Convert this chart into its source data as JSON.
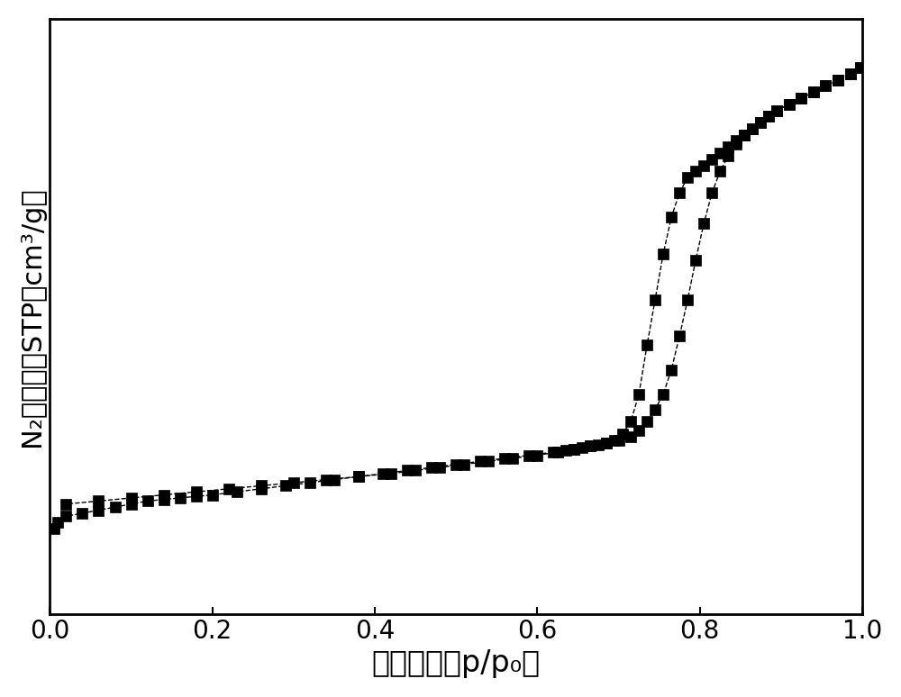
{
  "xlabel": "相对压力（p/p₀）",
  "ylabel": "N₂吸附量（STP，cm³/g）",
  "xlim": [
    0.0,
    1.0
  ],
  "xticks": [
    0.0,
    0.2,
    0.4,
    0.6,
    0.8,
    1.0
  ],
  "background_color": "#ffffff",
  "line_color": "#000000",
  "marker": "s",
  "marker_size": 8,
  "adsorption_x": [
    0.005,
    0.01,
    0.02,
    0.04,
    0.06,
    0.08,
    0.1,
    0.12,
    0.14,
    0.16,
    0.18,
    0.2,
    0.23,
    0.26,
    0.29,
    0.32,
    0.35,
    0.38,
    0.41,
    0.44,
    0.47,
    0.5,
    0.53,
    0.56,
    0.59,
    0.62,
    0.645,
    0.665,
    0.685,
    0.7,
    0.715,
    0.725,
    0.735,
    0.745,
    0.755,
    0.765,
    0.775,
    0.785,
    0.795,
    0.805,
    0.815,
    0.825,
    0.835,
    0.845,
    0.855,
    0.865,
    0.875,
    0.885,
    0.895,
    0.91,
    0.925,
    0.94,
    0.955,
    0.97,
    0.985,
    0.998
  ],
  "adsorption_y": [
    28,
    30,
    32,
    33,
    34,
    35,
    36,
    37,
    37.5,
    38,
    38.5,
    39,
    40,
    41,
    42,
    43,
    44,
    45,
    46,
    47,
    48,
    49,
    50,
    51,
    52,
    53,
    54,
    55,
    56,
    57,
    58,
    60,
    63,
    67,
    72,
    80,
    91,
    103,
    116,
    128,
    138,
    145,
    150,
    154,
    157,
    159,
    161,
    163,
    165,
    167,
    169,
    171,
    173,
    175,
    177,
    179
  ],
  "desorption_x": [
    0.998,
    0.985,
    0.97,
    0.955,
    0.94,
    0.925,
    0.91,
    0.895,
    0.885,
    0.875,
    0.865,
    0.855,
    0.845,
    0.835,
    0.825,
    0.815,
    0.805,
    0.795,
    0.785,
    0.775,
    0.765,
    0.755,
    0.745,
    0.735,
    0.725,
    0.715,
    0.705,
    0.695,
    0.685,
    0.675,
    0.665,
    0.655,
    0.645,
    0.635,
    0.625,
    0.6,
    0.57,
    0.54,
    0.51,
    0.48,
    0.45,
    0.42,
    0.38,
    0.34,
    0.3,
    0.26,
    0.22,
    0.18,
    0.14,
    0.1,
    0.06,
    0.02
  ],
  "desorption_y": [
    179,
    177,
    175,
    173,
    171,
    169,
    167,
    165,
    163,
    161,
    159,
    157,
    155,
    153,
    151,
    149,
    147,
    145,
    143,
    138,
    130,
    118,
    103,
    88,
    72,
    63,
    59,
    57,
    56,
    55.5,
    55,
    54.5,
    54,
    53.5,
    53,
    52,
    51,
    50,
    49,
    48,
    47,
    46,
    45,
    44,
    43,
    42,
    41,
    40,
    39,
    38,
    37,
    36
  ],
  "figsize": [
    10.0,
    7.74
  ],
  "dpi": 100,
  "xlabel_fontsize": 24,
  "ylabel_fontsize": 22,
  "tick_fontsize": 20,
  "axis_linewidth": 2.0,
  "ylim_min": 0,
  "ylim_max": 195
}
